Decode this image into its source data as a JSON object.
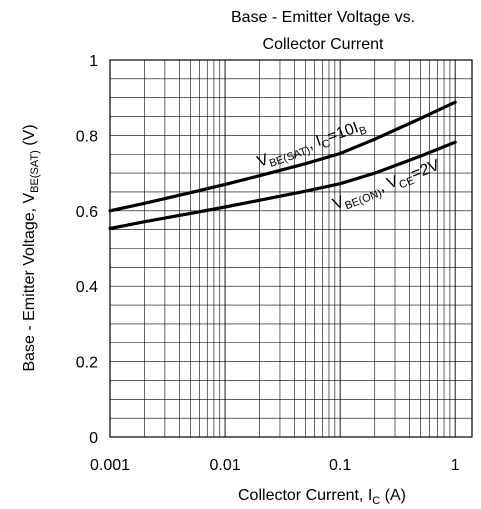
{
  "chart_data": {
    "type": "line",
    "title_lines": [
      "Base - Emitter Voltage vs.",
      "Collector Current"
    ],
    "xlabel": {
      "main": "Collector Current, I",
      "sub": "C",
      "tail": " (A)"
    },
    "ylabel": {
      "main": "Base - Emitter Voltage, V",
      "sub": "BE(SAT)",
      "tail": " (V)"
    },
    "x_scale": "log",
    "xlim": [
      0.001,
      1.4
    ],
    "ylim": [
      0,
      1
    ],
    "x_ticks": [
      {
        "value": 0.001,
        "label": "0.001"
      },
      {
        "value": 0.01,
        "label": "0.01"
      },
      {
        "value": 0.1,
        "label": "0.1"
      },
      {
        "value": 1,
        "label": "1"
      }
    ],
    "y_ticks": [
      {
        "value": 0,
        "label": "0"
      },
      {
        "value": 0.2,
        "label": "0.2"
      },
      {
        "value": 0.4,
        "label": "0.4"
      },
      {
        "value": 0.6,
        "label": "0.6"
      },
      {
        "value": 0.8,
        "label": "0.8"
      },
      {
        "value": 1,
        "label": "1"
      }
    ],
    "grid": true,
    "series": [
      {
        "label": {
          "p1": "V",
          "s1": "BE(SAT)",
          "p2": ", I",
          "s2": "C",
          "p3": "=10I",
          "s3": "B"
        },
        "points": [
          [
            0.001,
            0.6
          ],
          [
            0.002,
            0.62
          ],
          [
            0.005,
            0.648
          ],
          [
            0.01,
            0.67
          ],
          [
            0.02,
            0.693
          ],
          [
            0.05,
            0.725
          ],
          [
            0.1,
            0.752
          ],
          [
            0.2,
            0.79
          ],
          [
            0.5,
            0.845
          ],
          [
            1.0,
            0.888
          ]
        ]
      },
      {
        "label": {
          "p1": "V",
          "s1": "BE(ON)",
          "p2": ", V",
          "s2": "CE",
          "p3": "=2V",
          "s3": ""
        },
        "points": [
          [
            0.001,
            0.553
          ],
          [
            0.002,
            0.571
          ],
          [
            0.005,
            0.593
          ],
          [
            0.01,
            0.61
          ],
          [
            0.02,
            0.628
          ],
          [
            0.05,
            0.652
          ],
          [
            0.1,
            0.672
          ],
          [
            0.2,
            0.7
          ],
          [
            0.5,
            0.745
          ],
          [
            1.0,
            0.782
          ]
        ]
      }
    ]
  }
}
